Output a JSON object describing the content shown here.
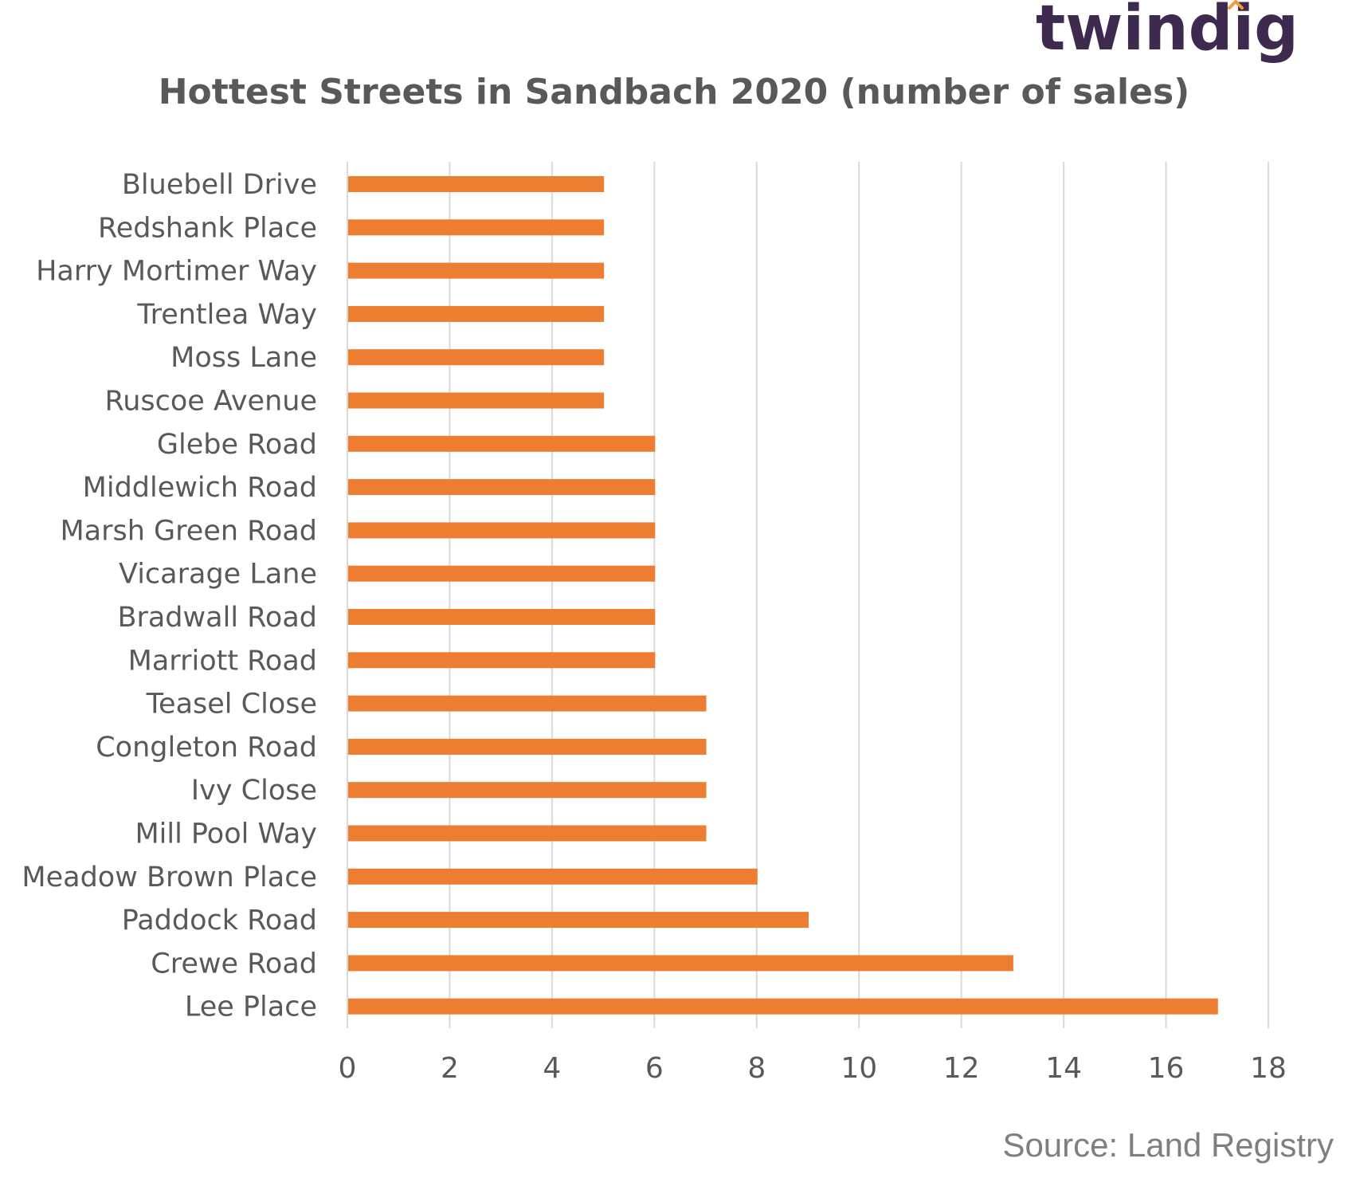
{
  "logo": {
    "text": "twindig",
    "text_color": "#3d2a4e",
    "accent_color": "#f39a3c"
  },
  "source": "Source: Land Registry",
  "colors": {
    "bar": "#ed7d31",
    "grid": "#d9d9d9",
    "text": "#595959"
  },
  "chart_data": {
    "type": "bar",
    "orientation": "horizontal",
    "title": "Hottest Streets in Sandbach  2020 (number of sales)",
    "xlabel": "",
    "ylabel": "",
    "categories": [
      "Bluebell Drive",
      "Redshank Place",
      "Harry Mortimer Way",
      "Trentlea Way",
      "Moss Lane",
      "Ruscoe Avenue",
      "Glebe Road",
      "Middlewich Road",
      "Marsh Green Road",
      "Vicarage Lane",
      "Bradwall Road",
      "Marriott Road",
      "Teasel Close",
      "Congleton Road",
      "Ivy Close",
      "Mill Pool Way",
      "Meadow Brown Place",
      "Paddock Road",
      "Crewe Road",
      "Lee Place"
    ],
    "values": [
      5,
      5,
      5,
      5,
      5,
      5,
      6,
      6,
      6,
      6,
      6,
      6,
      7,
      7,
      7,
      7,
      8,
      9,
      13,
      17
    ],
    "xlim": [
      0,
      18
    ],
    "xticks": [
      0,
      2,
      4,
      6,
      8,
      10,
      12,
      14,
      16,
      18
    ],
    "grid": "vertical",
    "legend": "none"
  }
}
